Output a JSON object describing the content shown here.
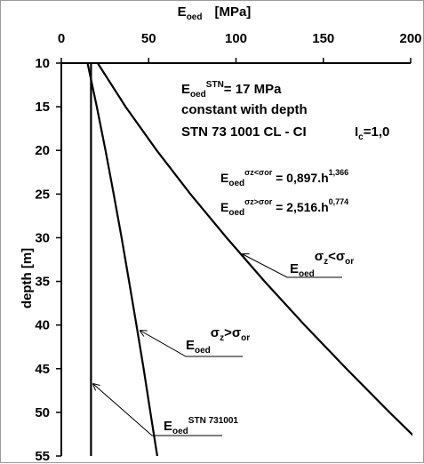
{
  "chart_data": {
    "type": "line",
    "title": "",
    "xlabel": {
      "main": "E",
      "sub": "oed",
      "unit": "[MPa]"
    },
    "ylabel": "depth  [m]",
    "xlim": [
      0,
      200
    ],
    "ylim": [
      10,
      55
    ],
    "y_inverted": true,
    "x_axis_position": "top",
    "grid": false,
    "x_ticks": [
      "0",
      "50",
      "100",
      "150",
      "200"
    ],
    "y_ticks": [
      "10",
      "15",
      "20",
      "25",
      "30",
      "35",
      "40",
      "45",
      "50",
      "55"
    ],
    "series": [
      {
        "key": "lower",
        "formula": "0.897*h^1.366",
        "points": [
          [
            20.8,
            10
          ],
          [
            36.8,
            15
          ],
          [
            54.6,
            20
          ],
          [
            73.9,
            25
          ],
          [
            94.6,
            30
          ],
          [
            116.4,
            35
          ],
          [
            139.3,
            40
          ],
          [
            163.2,
            45
          ],
          [
            187.9,
            50
          ],
          [
            213.5,
            55
          ]
        ]
      },
      {
        "key": "upper",
        "formula": "2.516*h^0.774",
        "points": [
          [
            15.0,
            10
          ],
          [
            20.3,
            15
          ],
          [
            25.3,
            20
          ],
          [
            30.0,
            25
          ],
          [
            34.5,
            30
          ],
          [
            38.8,
            35
          ],
          [
            43.0,
            40
          ],
          [
            47.1,
            45
          ],
          [
            51.0,
            50
          ],
          [
            54.9,
            55
          ]
        ]
      },
      {
        "key": "stn",
        "points": [
          [
            17,
            10
          ],
          [
            17,
            55
          ]
        ]
      }
    ],
    "annotations": {
      "note_line1_main": "E",
      "note_line1_sub": "oed",
      "note_line1_sup": "STN",
      "note_line1_rest": "= 17 MPa",
      "note_line2": "constant with depth",
      "note_line3": "STN 73 1001  CL - CI",
      "note_ic_main": "I",
      "note_ic_sub": "c",
      "note_ic_rest": "=1,0",
      "eq1_main": "E",
      "eq1_sub": "oed",
      "eq1_sup": "σz<σor",
      "eq1_rest": " = 0,897.h",
      "eq1_exp": "1,366",
      "eq2_main": "E",
      "eq2_sub": "oed",
      "eq2_sup": "σz>σor",
      "eq2_rest": " = 2,516.h",
      "eq2_exp": "0,774",
      "label_lower_main": "E",
      "label_lower_sub": "oed",
      "label_lower_s1": "σ",
      "label_lower_s1sub": "z",
      "label_lower_rel": "<σ",
      "label_lower_s2sub": "or",
      "label_upper_main": "E",
      "label_upper_sub": "oed",
      "label_upper_s1": "σ",
      "label_upper_s1sub": "z",
      "label_upper_rel": ">σ",
      "label_upper_s2sub": "or",
      "label_stn_main": "E",
      "label_stn_sub": "oed",
      "label_stn_sup": "STN 731001"
    }
  }
}
